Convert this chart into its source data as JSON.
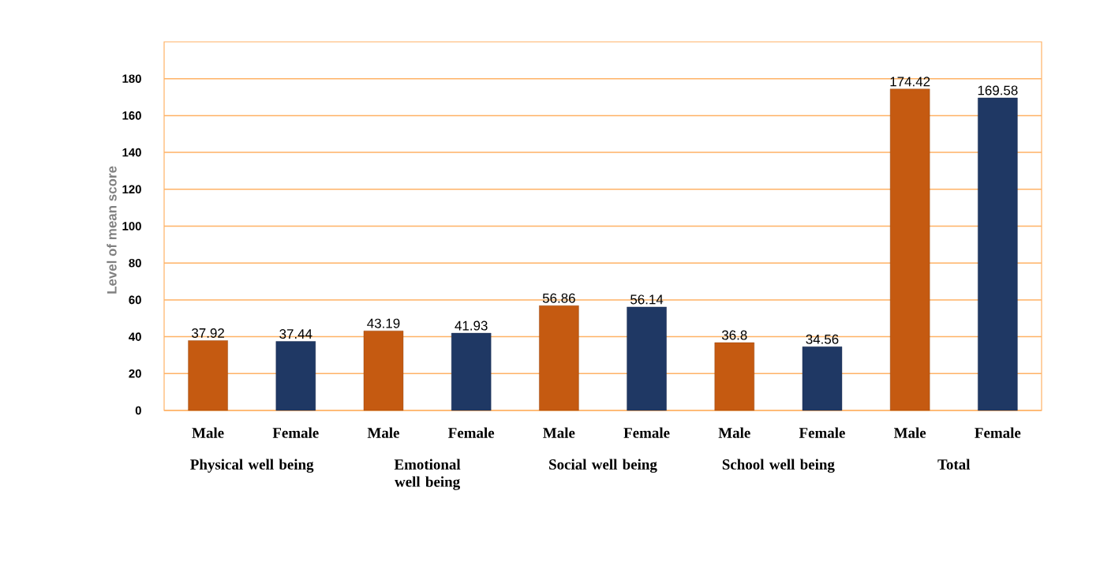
{
  "chart_data": {
    "type": "bar",
    "ylabel": "Level of mean score",
    "categories": [
      "Physical well being",
      "Emotional well being",
      "Social well being",
      "School well being",
      "Total"
    ],
    "series": [
      {
        "name": "Male",
        "color": "#c55a11",
        "values": [
          37.92,
          43.19,
          56.86,
          36.8,
          174.42
        ]
      },
      {
        "name": "Female",
        "color": "#1f3864",
        "values": [
          37.44,
          41.93,
          56.14,
          34.56,
          169.58
        ]
      }
    ],
    "ylim": [
      0,
      200
    ],
    "yticks": [
      0,
      20,
      40,
      60,
      80,
      100,
      120,
      140,
      160,
      180
    ],
    "grid": "y",
    "data_labels": true
  }
}
